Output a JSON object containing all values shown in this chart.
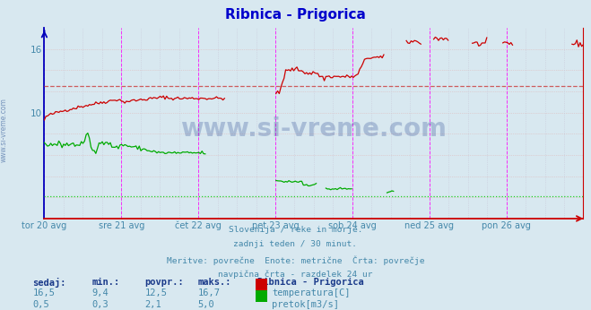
{
  "title": "Ribnica - Prigorica",
  "title_color": "#0000cc",
  "bg_color": "#d8e8f0",
  "plot_bg_color": "#d8e8f0",
  "grid_color": "#b0b8c8",
  "xlabel_color": "#4488aa",
  "ylabel_color": "#4488aa",
  "xticklabels": [
    "tor 20 avg",
    "sre 21 avg",
    "čet 22 avg",
    "pet 23 avg",
    "sob 24 avg",
    "ned 25 avg",
    "pon 26 avg"
  ],
  "ytick_vals": [
    10,
    16
  ],
  "ymin": 0,
  "ymax": 18,
  "temp_avg": 12.5,
  "flow_avg": 2.1,
  "temp_color": "#cc0000",
  "flow_color": "#00aa00",
  "avg_line_temp_color": "#cc4444",
  "avg_line_flow_color": "#00cc00",
  "vline_color": "#ff00ff",
  "left_spine_color": "#0000bb",
  "bottom_spine_color": "#cc0000",
  "watermark": "www.si-vreme.com",
  "watermark_color": "#1a3a8a",
  "footer_lines": [
    "Slovenija / reke in morje.",
    "zadnji teden / 30 minut.",
    "Meritve: povrečne  Enote: metrične  Črta: povrečje",
    "navpična črta - razdelek 24 ur"
  ],
  "footer_color": "#4488aa",
  "legend_title": "Ribnica - Prigorica",
  "legend_items": [
    {
      "label": "temperatura[C]",
      "color": "#cc0000"
    },
    {
      "label": "pretok[m3/s]",
      "color": "#00aa00"
    }
  ],
  "stats_labels": [
    "sedaj:",
    "min.:",
    "povpr.:",
    "maks.:"
  ],
  "stats_temp": [
    "16,5",
    "9,4",
    "12,5",
    "16,7"
  ],
  "stats_flow": [
    "0,5",
    "0,3",
    "2,1",
    "5,0"
  ],
  "stats_color": "#4488aa",
  "stats_bold_color": "#1a3a8a"
}
